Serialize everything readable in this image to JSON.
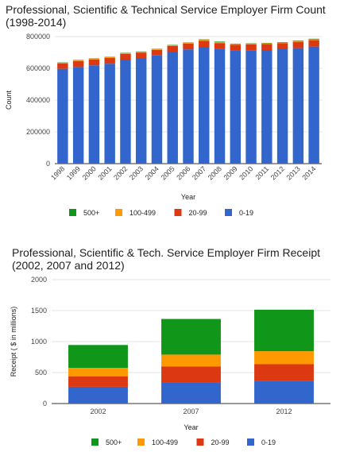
{
  "chart_data": [
    {
      "type": "bar",
      "stacked": true,
      "title": "Professional, Scientific & Technical Service Employer Firm Count\n(1998-2014)",
      "xlabel": "Year",
      "ylabel": "Count",
      "ylim": [
        0,
        800000
      ],
      "yticks": [
        "0",
        "200000",
        "400000",
        "600000",
        "800000"
      ],
      "grid": true,
      "legend_position": "bottom",
      "categories": [
        "1998",
        "1999",
        "2000",
        "2001",
        "2002",
        "2003",
        "2004",
        "2005",
        "2006",
        "2007",
        "2008",
        "2009",
        "2010",
        "2011",
        "2012",
        "2013",
        "2014"
      ],
      "series": [
        {
          "name": "0-19",
          "color": "#3366cc",
          "values": [
            597000,
            608000,
            619000,
            629000,
            655000,
            665000,
            681000,
            705000,
            719000,
            735000,
            722000,
            712000,
            714000,
            715000,
            720000,
            727000,
            737000
          ]
        },
        {
          "name": "20-99",
          "color": "#dc3912",
          "values": [
            33000,
            38000,
            37000,
            36000,
            36000,
            34000,
            35000,
            36000,
            37000,
            38000,
            37000,
            36000,
            37000,
            38000,
            38000,
            39000,
            40000
          ]
        },
        {
          "name": "100-499",
          "color": "#ff9900",
          "values": [
            5000,
            5000,
            5000,
            5000,
            5000,
            5000,
            5000,
            5000,
            5000,
            6000,
            6000,
            5000,
            5000,
            5000,
            5000,
            6000,
            6000
          ]
        },
        {
          "name": "500+",
          "color": "#109618",
          "values": [
            2000,
            2000,
            2000,
            2000,
            2000,
            2000,
            2000,
            2000,
            2000,
            3000,
            3000,
            2000,
            2000,
            2000,
            2000,
            3000,
            3000
          ]
        }
      ]
    },
    {
      "type": "bar",
      "stacked": true,
      "title": "Professional, Scientific & Tech. Service Employer Firm Receipt\n(2002, 2007 and 2012)",
      "xlabel": "Year",
      "ylabel": "Receipt ( $ in millions)",
      "ylim": [
        0,
        2000
      ],
      "yticks": [
        "0",
        "500",
        "1000",
        "1500",
        "2000"
      ],
      "grid": true,
      "legend_position": "bottom",
      "categories": [
        "2002",
        "2007",
        "2012"
      ],
      "series": [
        {
          "name": "0-19",
          "color": "#3366cc",
          "values": [
            270,
            345,
            370
          ]
        },
        {
          "name": "20-99",
          "color": "#dc3912",
          "values": [
            170,
            255,
            265
          ]
        },
        {
          "name": "100-499",
          "color": "#ff9900",
          "values": [
            135,
            190,
            210
          ]
        },
        {
          "name": "500+",
          "color": "#109618",
          "values": [
            370,
            575,
            670
          ]
        }
      ]
    }
  ]
}
